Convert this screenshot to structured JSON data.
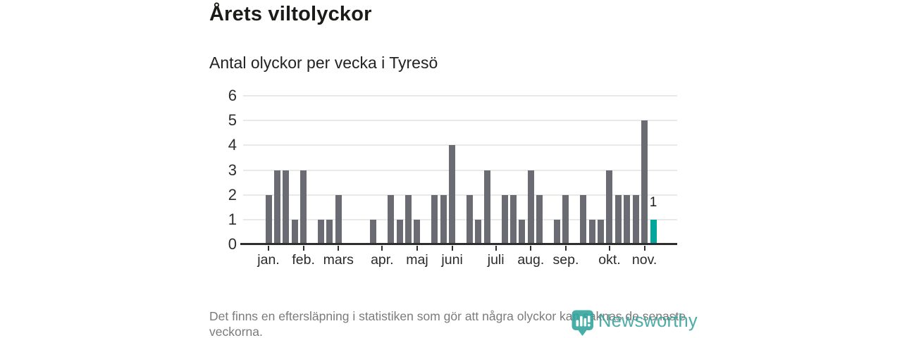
{
  "title": "Årets viltolyckor",
  "subtitle": "Antal olyckor per vecka i Tyresö",
  "footer": {
    "note": "Det finns en eftersläpning i statistiken som gör att några olyckor kan saknas de senaste veckorna.",
    "brand": "Newsworthy"
  },
  "colors": {
    "bar": "#6b6b73",
    "highlight": "#00a69b",
    "brand": "#35a19c",
    "axis": "#2e2e2e",
    "grid": "#e9e9e7",
    "title_text": "#1b1b18",
    "muted_text": "#7b7b7b"
  },
  "chart_data": {
    "type": "bar",
    "title": "Årets viltolyckor",
    "subtitle": "Antal olyckor per vecka i Tyresö",
    "x_unit": "vecka",
    "values": [
      2,
      3,
      3,
      1,
      3,
      0,
      1,
      1,
      2,
      0,
      0,
      0,
      1,
      0,
      2,
      1,
      2,
      1,
      0,
      2,
      2,
      4,
      0,
      2,
      1,
      3,
      0,
      2,
      2,
      1,
      3,
      2,
      0,
      1,
      2,
      0,
      2,
      1,
      1,
      3,
      2,
      2,
      2,
      5,
      1
    ],
    "highlight_index": 44,
    "highlight_value_label": "1",
    "ylim": [
      0,
      6
    ],
    "y_ticks": [
      "0",
      "1",
      "2",
      "3",
      "4",
      "5",
      "6"
    ],
    "grid": true,
    "legend": "none",
    "month_ticks": [
      {
        "label": "jan.",
        "week_index": 0
      },
      {
        "label": "feb.",
        "week_index": 4
      },
      {
        "label": "mars",
        "week_index": 8
      },
      {
        "label": "apr.",
        "week_index": 13
      },
      {
        "label": "maj",
        "week_index": 17
      },
      {
        "label": "juni",
        "week_index": 21
      },
      {
        "label": "juli",
        "week_index": 26
      },
      {
        "label": "aug.",
        "week_index": 30
      },
      {
        "label": "sep.",
        "week_index": 34
      },
      {
        "label": "okt.",
        "week_index": 39
      },
      {
        "label": "nov.",
        "week_index": 43
      }
    ]
  }
}
